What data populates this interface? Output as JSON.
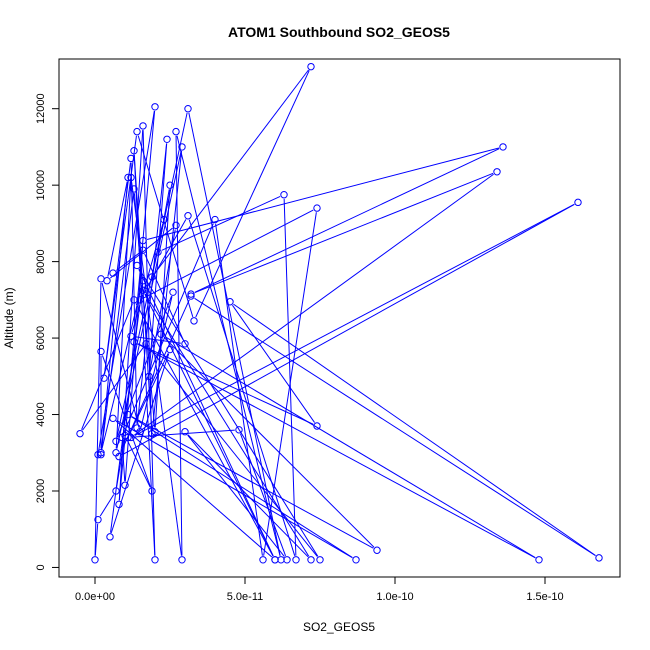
{
  "chart_data": {
    "type": "line",
    "title": "ATOM1 Southbound SO2_GEOS5",
    "xlabel": "SO2_GEOS5",
    "ylabel": "Altitude (m)",
    "xlim": [
      -1.2e-11,
      1.75e-10
    ],
    "ylim": [
      -250,
      13300
    ],
    "x_ticks": [
      0,
      5e-11,
      1e-10,
      1.5e-10
    ],
    "x_tick_labels": [
      "0.0e+00",
      "5.0e-11",
      "1.0e-10",
      "1.5e-10"
    ],
    "y_ticks": [
      0,
      2000,
      4000,
      6000,
      8000,
      10000,
      12000
    ],
    "y_tick_labels": [
      "0",
      "2000",
      "4000",
      "6000",
      "8000",
      "10000",
      "12000"
    ],
    "grid": false,
    "legend": "none",
    "series_color": "#0000ff",
    "marker": "open-circle",
    "series": [
      {
        "points": [
          [
            1e-12,
            2950
          ],
          [
            2e-11,
            12050
          ],
          [
            8e-12,
            1650
          ],
          [
            1.6e-11,
            11550
          ],
          [
            2e-11,
            200
          ],
          [
            1.3e-11,
            10900
          ],
          [
            1.9e-11,
            3500
          ],
          [
            2.9e-11,
            11000
          ],
          [
            7e-12,
            3000
          ],
          [
            1.2e-11,
            10200
          ],
          [
            2.9e-11,
            200
          ],
          [
            2.7e-11,
            11400
          ],
          [
            6.2e-11,
            200
          ],
          [
            3.1e-11,
            12000
          ],
          [
            1.9e-11,
            7600
          ],
          [
            7.2e-11,
            13100
          ],
          [
            3.3e-11,
            6450
          ],
          [
            1.4e-11,
            11400
          ],
          [
            3e-12,
            4950
          ],
          [
            1.2e-11,
            10700
          ],
          [
            1.4e-11,
            3650
          ],
          [
            2.4e-11,
            11200
          ],
          [
            1.8e-11,
            5000
          ],
          [
            2.7e-11,
            8950
          ],
          [
            4e-12,
            7500
          ],
          [
            1.1e-11,
            10200
          ],
          [
            2e-12,
            2950
          ],
          [
            1.3e-11,
            9900
          ],
          [
            2e-11,
            3550
          ],
          [
            2.5e-11,
            10000
          ],
          [
            2.1e-11,
            8250
          ],
          [
            6.3e-11,
            9750
          ],
          [
            6.7e-11,
            200
          ],
          [
            3.1e-11,
            9200
          ],
          [
            1.5e-11,
            7000
          ],
          [
            7.4e-11,
            9400
          ],
          [
            5.6e-11,
            200
          ],
          [
            4e-11,
            9100
          ],
          [
            9e-12,
            3400
          ],
          [
            1e-11,
            2150
          ],
          [
            1.6e-11,
            8550
          ],
          [
            1.36e-10,
            11000
          ],
          [
            3.2e-11,
            7150
          ],
          [
            1.34e-10,
            10350
          ],
          [
            1.2e-11,
            3400
          ],
          [
            1.61e-10,
            9550
          ],
          [
            8e-12,
            2900
          ],
          [
            3.2e-11,
            7100
          ],
          [
            1.68e-10,
            250
          ],
          [
            4.5e-11,
            6950
          ],
          [
            7.4e-11,
            3700
          ],
          [
            1.3e-11,
            5900
          ],
          [
            1.48e-10,
            200
          ],
          [
            2.2e-11,
            6100
          ],
          [
            9.4e-11,
            450
          ],
          [
            1.1e-11,
            4000
          ],
          [
            8.7e-11,
            200
          ],
          [
            6e-12,
            3900
          ],
          [
            6e-11,
            200
          ],
          [
            1.4e-11,
            7900
          ],
          [
            7.5e-11,
            200
          ],
          [
            1.7e-11,
            5850
          ],
          [
            -5e-12,
            3500
          ],
          [
            1.3e-11,
            7000
          ],
          [
            6e-11,
            200
          ],
          [
            1.6e-11,
            7250
          ],
          [
            7.2e-11,
            200
          ],
          [
            3e-11,
            3550
          ],
          [
            6.4e-11,
            200
          ],
          [
            4.8e-11,
            3600
          ],
          [
            1.1e-11,
            3400
          ],
          [
            2.5e-11,
            5700
          ],
          [
            5e-12,
            800
          ],
          [
            1.6e-11,
            7500
          ],
          [
            2e-12,
            3000
          ],
          [
            2e-12,
            5650
          ],
          [
            1.9e-11,
            2000
          ],
          [
            1e-11,
            3450
          ],
          [
            7e-12,
            2000
          ],
          [
            1e-12,
            1250
          ],
          [
            0.0,
            200
          ],
          [
            2e-12,
            7550
          ],
          [
            1.5e-11,
            3550
          ],
          [
            2.6e-11,
            7200
          ],
          [
            7e-12,
            3300
          ],
          [
            2.3e-11,
            9100
          ],
          [
            1.2e-11,
            6050
          ],
          [
            3e-11,
            5850
          ],
          [
            1.6e-11,
            8300
          ],
          [
            6e-12,
            7700
          ]
        ]
      }
    ]
  }
}
